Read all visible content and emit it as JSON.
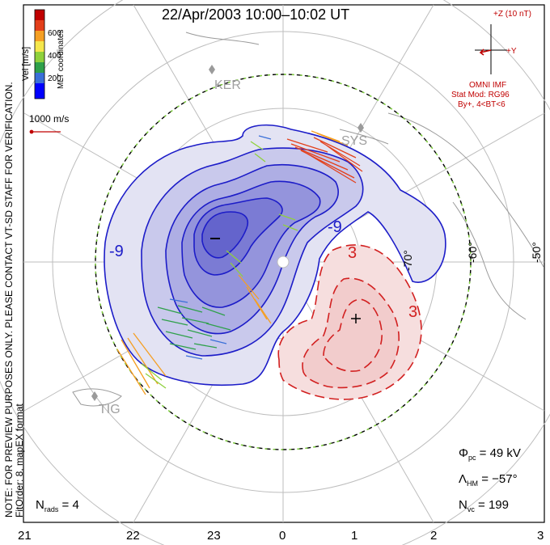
{
  "title": "22/Apr/2003 10:00–10:02 UT",
  "coordinate_system": "MLT coordinates",
  "colorbar": {
    "label": "Vel [m/s]",
    "ticks": [
      "600",
      "400",
      "200"
    ],
    "colors": [
      "#0000ff",
      "#3a6fd8",
      "#2ea04a",
      "#8fd13c",
      "#f5e74c",
      "#f59f23",
      "#e33f1a",
      "#c00000"
    ]
  },
  "scale_vector": "1000 m/s",
  "preview_note": "NOTE: FOR PREVIEW PURPOSES ONLY. PLEASE CONTACT VT-SD STAFF FOR VERIFICATION.",
  "fit_order": "FitOrder: 8,  mapEX format",
  "imf": {
    "z_label": "+Z (10 nT)",
    "y_label": "+Y",
    "source": "OMNI IMF",
    "model": "Stat Mod: RG96",
    "condition": "By+, 4<BT<6"
  },
  "stations": [
    "KER",
    "SYS",
    "TIG"
  ],
  "contour_labels": {
    "negative": "-9",
    "negative_center": "–",
    "positive": "3",
    "positive_center": "+"
  },
  "latitude_labels": [
    "-70°",
    "-60°",
    "-50°"
  ],
  "stats": {
    "phi_pc_label": "Φ",
    "phi_pc_sub": "pc",
    "phi_pc_value": "=  49 kV",
    "lambda_hm_label": "Λ",
    "lambda_hm_sub": "HM",
    "lambda_hm_value": "=  −57°",
    "n_vc_label": "N",
    "n_vc_sub": "vc",
    "n_vc_value": "=  199",
    "n_rads_label": "N",
    "n_rads_sub": "rads",
    "n_rads_value": "=  4"
  },
  "mlt_axis": [
    "21",
    "22",
    "23",
    "0",
    "1",
    "2",
    "3"
  ],
  "colors": {
    "negative": "#1c1cc8",
    "positive": "#d22020",
    "grid": "#bdbdbd",
    "boundary": "#7fd13c",
    "land": "#9a9a9a"
  }
}
